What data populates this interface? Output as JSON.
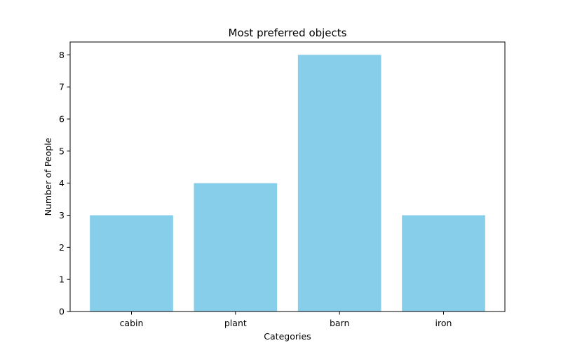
{
  "chart_data": {
    "type": "bar",
    "title": "Most preferred objects",
    "xlabel": "Categories",
    "ylabel": "Number of People",
    "categories": [
      "cabin",
      "plant",
      "barn",
      "iron"
    ],
    "values": [
      3,
      4,
      8,
      3
    ],
    "ylim": [
      0,
      8.4
    ],
    "yticks": [
      0,
      1,
      2,
      3,
      4,
      5,
      6,
      7,
      8
    ],
    "bar_color": "#87CEEB",
    "grid": false,
    "legend": "none"
  }
}
